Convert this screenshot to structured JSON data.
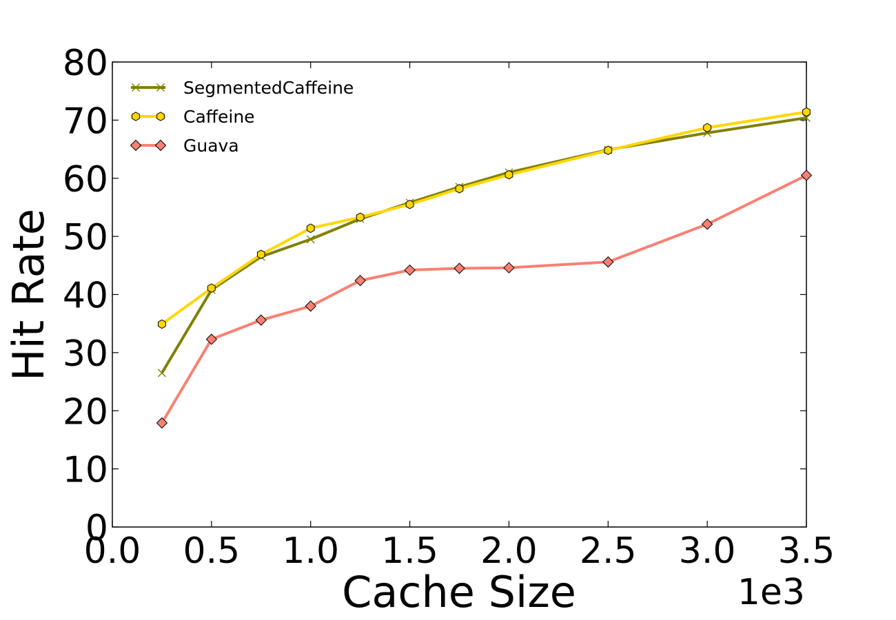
{
  "chart_data": {
    "type": "line",
    "xlabel": "Cache Size",
    "ylabel": "Hit Rate",
    "x_offset_label": "1e3",
    "xlim": [
      0.0,
      3.5
    ],
    "ylim": [
      0,
      80
    ],
    "x_ticks": [
      "0.0",
      "0.5",
      "1.0",
      "1.5",
      "2.0",
      "2.5",
      "3.0",
      "3.5"
    ],
    "y_ticks": [
      "0",
      "10",
      "20",
      "30",
      "40",
      "50",
      "60",
      "70",
      "80"
    ],
    "grid": false,
    "legend_position": "top-left",
    "x": [
      0.25,
      0.5,
      0.75,
      1.0,
      1.25,
      1.5,
      1.75,
      2.0,
      2.5,
      3.0,
      3.5
    ],
    "series": [
      {
        "name": "SegmentedCaffeine",
        "color": "#808000",
        "marker": "x",
        "values": [
          26.5,
          40.8,
          46.5,
          49.5,
          53.0,
          55.8,
          58.5,
          61.0,
          64.9,
          67.8,
          70.4
        ]
      },
      {
        "name": "Caffeine",
        "color": "#FFD700",
        "marker": "hexagon",
        "values": [
          34.9,
          41.1,
          46.9,
          51.4,
          53.3,
          55.5,
          58.2,
          60.6,
          64.8,
          68.7,
          71.4
        ]
      },
      {
        "name": "Guava",
        "color": "#FA8072",
        "marker": "diamond",
        "values": [
          17.9,
          32.3,
          35.6,
          38.0,
          42.4,
          44.2,
          44.5,
          44.6,
          45.6,
          52.1,
          60.5
        ]
      }
    ]
  }
}
